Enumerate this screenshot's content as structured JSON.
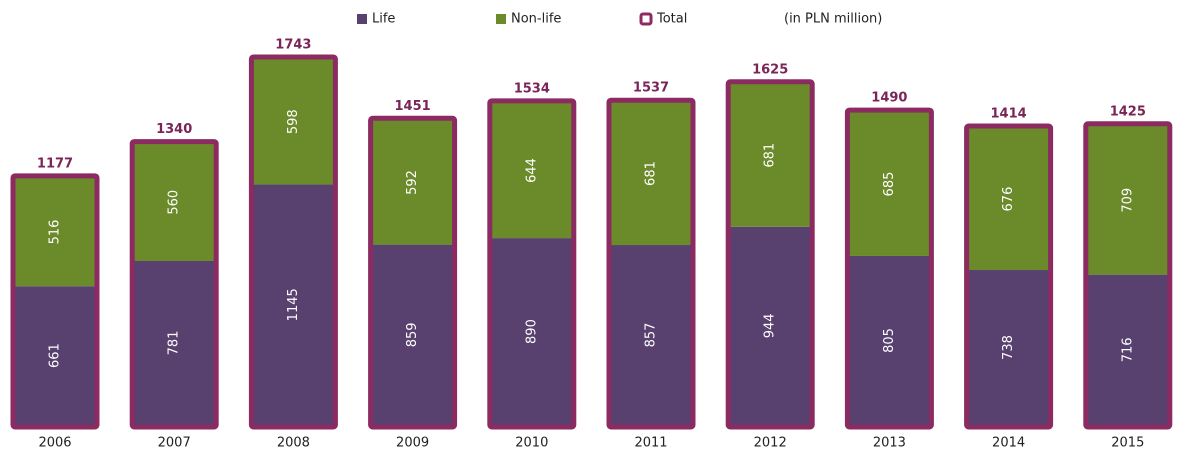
{
  "chart_data": {
    "type": "stacked_bar",
    "categories": [
      "2006",
      "2007",
      "2008",
      "2009",
      "2010",
      "2011",
      "2012",
      "2013",
      "2014",
      "2015"
    ],
    "series": [
      {
        "name": "Life",
        "color": "#58406f",
        "values": [
          661,
          781,
          1145,
          859,
          890,
          857,
          944,
          805,
          738,
          716
        ]
      },
      {
        "name": "Non-life",
        "color": "#6b8a2a",
        "values": [
          516,
          560,
          598,
          592,
          644,
          681,
          681,
          685,
          676,
          709
        ]
      }
    ],
    "totals": {
      "name": "Total",
      "color": "#8c2a62",
      "values": [
        1177,
        1340,
        1743,
        1451,
        1534,
        1537,
        1625,
        1490,
        1414,
        1425
      ]
    },
    "unit_note": "(in PLN million)"
  }
}
